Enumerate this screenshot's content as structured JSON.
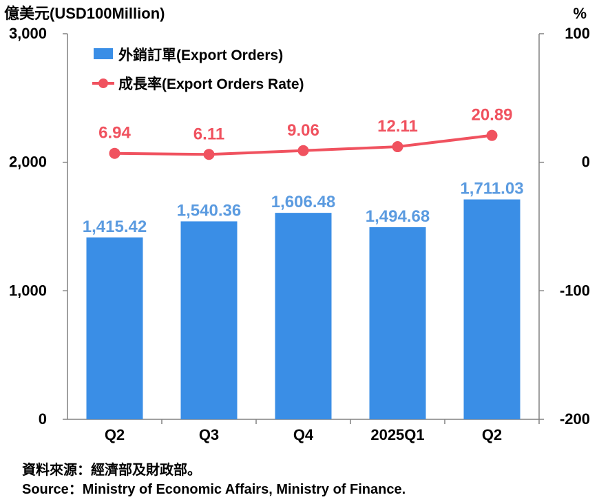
{
  "chart_data": {
    "type": "bar",
    "categories": [
      "Q2",
      "Q3",
      "Q4",
      "2025Q1",
      "Q2"
    ],
    "series": [
      {
        "name": "外銷訂單(Export Orders)",
        "kind": "bar",
        "axis": "left",
        "values": [
          1415.42,
          1540.36,
          1606.48,
          1494.68,
          1711.03
        ],
        "labels": [
          "1,415.42",
          "1,540.36",
          "1,606.48",
          "1,494.68",
          "1,711.03"
        ]
      },
      {
        "name": "成長率(Export Orders Rate)",
        "kind": "line",
        "axis": "right",
        "values": [
          6.94,
          6.11,
          9.06,
          12.11,
          20.89
        ],
        "labels": [
          "6.94",
          "6.11",
          "9.06",
          "12.11",
          "20.89"
        ]
      }
    ],
    "ylabel_left": "億美元(USD100Million)",
    "ylabel_right": "%",
    "ylim_left": [
      0,
      3000
    ],
    "ylim_right": [
      -200,
      100
    ],
    "left_ticks": [
      "0",
      "1,000",
      "2,000",
      "3,000"
    ],
    "left_tick_values": [
      0,
      1000,
      2000,
      3000
    ],
    "right_ticks": [
      "-200",
      "-100",
      "0",
      "100"
    ],
    "right_tick_values": [
      -200,
      -100,
      0,
      100
    ],
    "legend_position": "top-left",
    "grid": false
  },
  "source": {
    "zh": "資料來源：經濟部及財政部。",
    "en": "Source：Ministry of Economic Affairs, Ministry of Finance."
  },
  "colors": {
    "bar": "#3A8EE6",
    "bar_label": "#5B9BE0",
    "line": "#F0525F",
    "axis": "#808080"
  }
}
